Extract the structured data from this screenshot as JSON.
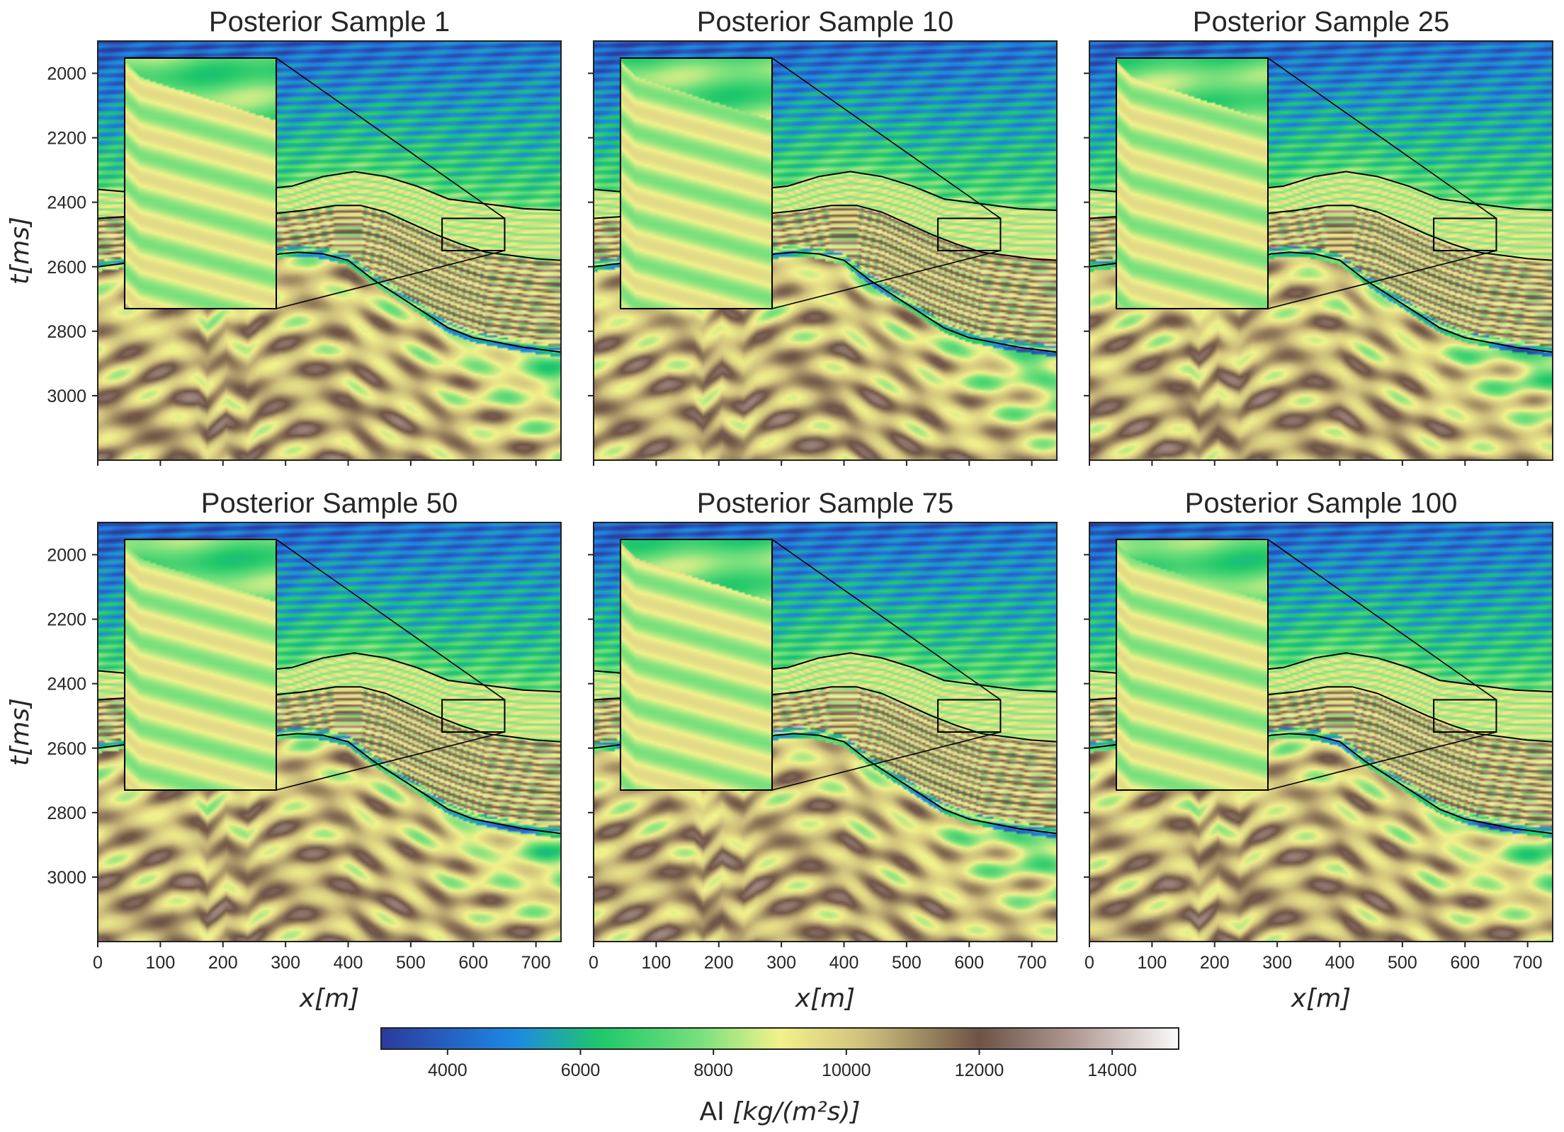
{
  "chart_data": {
    "type": "heatmap",
    "suptitle": "",
    "colormap": {
      "name": "gist_earth-like",
      "range": [
        3000,
        15000
      ],
      "stops": [
        {
          "value": 3000,
          "color": "#2b3a9c"
        },
        {
          "value": 5000,
          "color": "#1e88e5"
        },
        {
          "value": 6300,
          "color": "#1ec86a"
        },
        {
          "value": 7800,
          "color": "#78e07c"
        },
        {
          "value": 9000,
          "color": "#f2f28c"
        },
        {
          "value": 10300,
          "color": "#cfbf7c"
        },
        {
          "value": 12000,
          "color": "#6e5346"
        },
        {
          "value": 13500,
          "color": "#b49d98"
        },
        {
          "value": 15000,
          "color": "#fafafa"
        }
      ],
      "label": "AI [kg/(m²s)]",
      "label_prefix": "AI",
      "label_unit": "[kg/(m²s)]",
      "ticks": [
        4000,
        6000,
        8000,
        10000,
        12000,
        14000
      ],
      "tick_labels": [
        "4000",
        "6000",
        "8000",
        "10000",
        "12000",
        "14000"
      ]
    },
    "xlim": [
      0,
      740
    ],
    "ylim": [
      3200,
      1900
    ],
    "x_ticks": [
      0,
      100,
      200,
      300,
      400,
      500,
      600,
      700
    ],
    "x_tick_labels": [
      "0",
      "100",
      "200",
      "300",
      "400",
      "500",
      "600",
      "700"
    ],
    "y_ticks": [
      2000,
      2200,
      2400,
      2600,
      2800,
      3000
    ],
    "y_tick_labels": [
      "2000",
      "2200",
      "2400",
      "2600",
      "2800",
      "3000"
    ],
    "xlabel": "x[m]",
    "ylabel": "t[ms]",
    "inset": {
      "zoom_region_x": [
        550,
        650
      ],
      "zoom_region_t": [
        2450,
        2550
      ],
      "placement": "top-left"
    },
    "horizons": [
      {
        "points": [
          [
            0,
            2360
          ],
          [
            60,
            2370
          ],
          [
            140,
            2365
          ],
          [
            200,
            2350
          ],
          [
            260,
            2360
          ],
          [
            310,
            2350
          ],
          [
            360,
            2320
          ],
          [
            410,
            2305
          ],
          [
            460,
            2320
          ],
          [
            510,
            2350
          ],
          [
            560,
            2390
          ],
          [
            600,
            2400
          ],
          [
            640,
            2410
          ],
          [
            680,
            2420
          ],
          [
            740,
            2425
          ]
        ]
      },
      {
        "points": [
          [
            0,
            2450
          ],
          [
            40,
            2445
          ],
          [
            100,
            2440
          ],
          [
            160,
            2435
          ],
          [
            220,
            2430
          ],
          [
            280,
            2435
          ],
          [
            330,
            2425
          ],
          [
            380,
            2410
          ],
          [
            420,
            2410
          ],
          [
            460,
            2430
          ],
          [
            500,
            2465
          ],
          [
            540,
            2500
          ],
          [
            580,
            2530
          ],
          [
            620,
            2555
          ],
          [
            660,
            2565
          ],
          [
            700,
            2575
          ],
          [
            740,
            2580
          ]
        ]
      },
      {
        "points": [
          [
            0,
            2600
          ],
          [
            40,
            2590
          ],
          [
            80,
            2575
          ],
          [
            120,
            2560
          ],
          [
            160,
            2570
          ],
          [
            175,
            2600
          ],
          [
            190,
            2580
          ],
          [
            205,
            2560
          ],
          [
            220,
            2580
          ],
          [
            240,
            2600
          ],
          [
            260,
            2575
          ],
          [
            290,
            2560
          ],
          [
            320,
            2555
          ],
          [
            360,
            2560
          ],
          [
            400,
            2580
          ],
          [
            440,
            2640
          ],
          [
            480,
            2690
          ],
          [
            520,
            2740
          ],
          [
            560,
            2790
          ],
          [
            600,
            2820
          ],
          [
            640,
            2835
          ],
          [
            680,
            2850
          ],
          [
            740,
            2865
          ]
        ]
      }
    ],
    "panels": [
      {
        "title": "Posterior Sample 1",
        "seed": 1
      },
      {
        "title": "Posterior Sample 10",
        "seed": 10
      },
      {
        "title": "Posterior Sample 25",
        "seed": 25
      },
      {
        "title": "Posterior Sample 50",
        "seed": 50
      },
      {
        "title": "Posterior Sample 75",
        "seed": 75
      },
      {
        "title": "Posterior Sample 100",
        "seed": 100
      }
    ]
  }
}
